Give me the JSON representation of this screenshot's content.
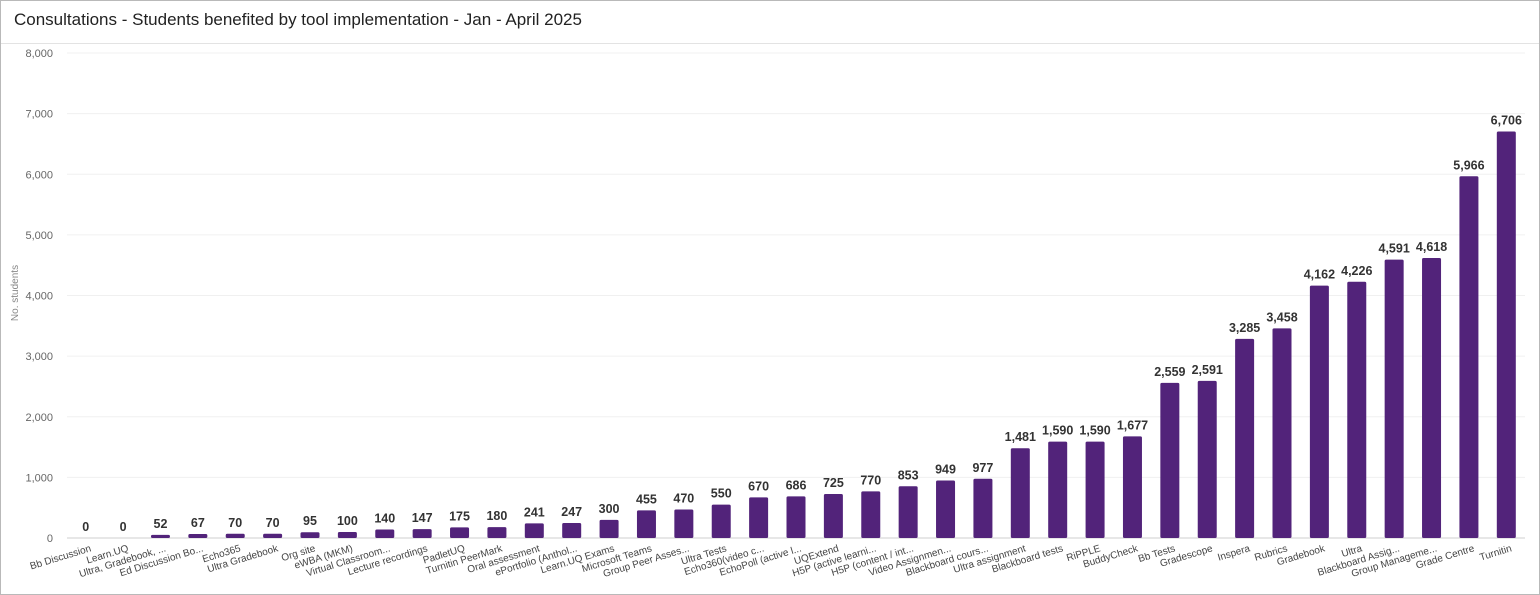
{
  "title": "Consultations - Students benefited by tool implementation - Jan - April 2025",
  "chart_data": {
    "type": "bar",
    "title": "Consultations - Students benefited by tool implementation - Jan - April 2025",
    "xlabel": "",
    "ylabel": "No. students",
    "ylim": [
      0,
      8000
    ],
    "yticks": [
      "0",
      "1,000",
      "2,000",
      "3,000",
      "4,000",
      "5,000",
      "6,000",
      "7,000",
      "8,000"
    ],
    "grid": true,
    "legend": "none",
    "bar_color": "#52237a",
    "categories": [
      "Bb Discussion",
      "Learn.UQ",
      "Ultra, Gradebook, ...",
      "Ed Discussion Bo...",
      "Echo365",
      "Ultra Gradebook",
      "Org site",
      "eWBA (MKM)",
      "Virtual Classroom...",
      "Lecture recordings",
      "PadletUQ",
      "Turnitin PeerMark",
      "Oral assessment",
      "ePortfolio (Anthol...",
      "Learn.UQ Exams",
      "Microsoft Teams",
      "Group Peer Asses...",
      "Ultra Tests",
      "Echo360(video c...",
      "EchoPoll (active l...",
      "UQExtend",
      "H5P (active learni...",
      "H5P (content / int...",
      "Video Assignmen...",
      "Blackboard cours...",
      "Ultra assignment",
      "Blackboard tests",
      "RiPPLE",
      "BuddyCheck",
      "Bb Tests",
      "Gradescope",
      "Inspera",
      "Rubrics",
      "Gradebook",
      "Ultra",
      "Blackboard Assig...",
      "Group Manageme...",
      "Grade Centre",
      "Turnitin"
    ],
    "values": [
      0,
      0,
      52,
      67,
      70,
      70,
      95,
      100,
      140,
      147,
      175,
      180,
      241,
      247,
      300,
      455,
      470,
      550,
      670,
      686,
      725,
      770,
      853,
      949,
      977,
      1481,
      1590,
      1590,
      1677,
      2559,
      2591,
      3285,
      3458,
      4162,
      4226,
      4591,
      4618,
      5966,
      6706
    ],
    "data_labels": [
      "0",
      "0",
      "52",
      "67",
      "70",
      "70",
      "95",
      "100",
      "140",
      "147",
      "175",
      "180",
      "241",
      "247",
      "300",
      "455",
      "470",
      "550",
      "670",
      "686",
      "725",
      "770",
      "853",
      "949",
      "977",
      "1,481",
      "1,590",
      "1,590",
      "1,677",
      "2,559",
      "2,591",
      "3,285",
      "3,458",
      "4,162",
      "4,226",
      "4,591",
      "4,618",
      "5,966",
      "6,706"
    ]
  }
}
